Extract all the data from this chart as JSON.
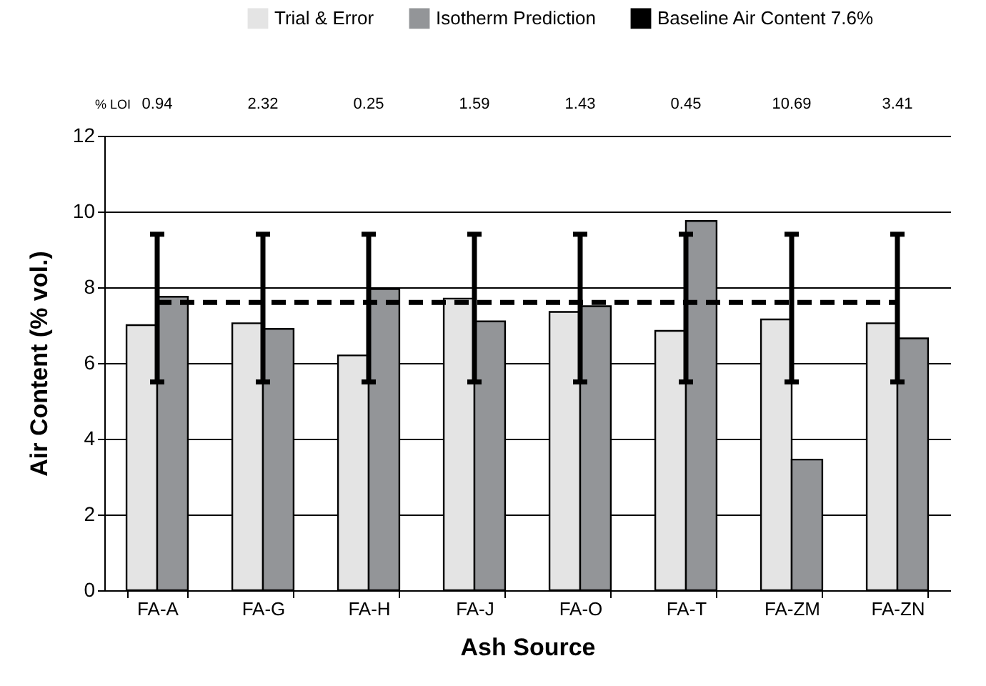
{
  "chart_data": {
    "type": "bar",
    "xlabel": "Ash Source",
    "ylabel": "Air Content (% vol.)",
    "categories": [
      "FA-A",
      "FA-G",
      "FA-H",
      "FA-J",
      "FA-O",
      "FA-T",
      "FA-ZM",
      "FA-ZN"
    ],
    "series": [
      {
        "name": "Trial & Error",
        "color": "#e4e4e4",
        "values": [
          7.0,
          7.05,
          6.2,
          7.7,
          7.35,
          6.85,
          7.15,
          7.05
        ]
      },
      {
        "name": "Isotherm Prediction",
        "color": "#939598",
        "values": [
          7.75,
          6.9,
          7.95,
          7.1,
          7.5,
          9.75,
          3.45,
          6.65
        ]
      },
      {
        "name": "Baseline Air Content 7.6%",
        "type": "line",
        "color": "#000000",
        "line_style": "dashed",
        "values": [
          7.6,
          7.6,
          7.6,
          7.6,
          7.6,
          7.6,
          7.6,
          7.6
        ],
        "errors": [
          [
            5.5,
            9.4
          ],
          [
            5.5,
            9.4
          ],
          [
            5.5,
            9.4
          ],
          [
            5.5,
            9.4
          ],
          [
            5.5,
            9.4
          ],
          [
            5.5,
            9.4
          ],
          [
            5.5,
            9.4
          ],
          [
            5.5,
            9.4
          ]
        ]
      }
    ],
    "ylim": [
      0,
      12
    ],
    "yticks": [
      0,
      2,
      4,
      6,
      8,
      10,
      12
    ],
    "grid": "y",
    "legend": "top",
    "annotations": [
      "% LOI",
      "0.94",
      "2.32",
      "0.25",
      "1.59",
      "1.43",
      "0.45",
      "10.69",
      "3.41"
    ]
  }
}
